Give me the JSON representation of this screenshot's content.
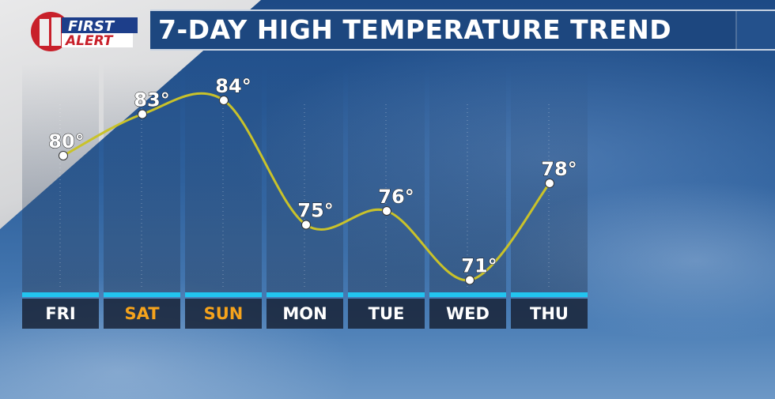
{
  "logo": {
    "number": "1",
    "line1": "FIRST",
    "line2": "ALERT"
  },
  "title": "7-DAY HIGH TEMPERATURE TREND",
  "colors": {
    "title_bar": "#1d477f",
    "accent": "#22c4ef",
    "weekend": "#f5a31c",
    "line": "#c9c22a"
  },
  "chart_data": {
    "type": "line",
    "title": "7-DAY HIGH TEMPERATURE TREND",
    "categories": [
      "FRI",
      "SAT",
      "SUN",
      "MON",
      "TUE",
      "WED",
      "THU"
    ],
    "weekend": [
      "SAT",
      "SUN"
    ],
    "values": [
      80,
      83,
      84,
      75,
      76,
      71,
      78
    ],
    "labels": [
      "80°",
      "83°",
      "84°",
      "75°",
      "76°",
      "71°",
      "78°"
    ],
    "unit": "°F"
  }
}
